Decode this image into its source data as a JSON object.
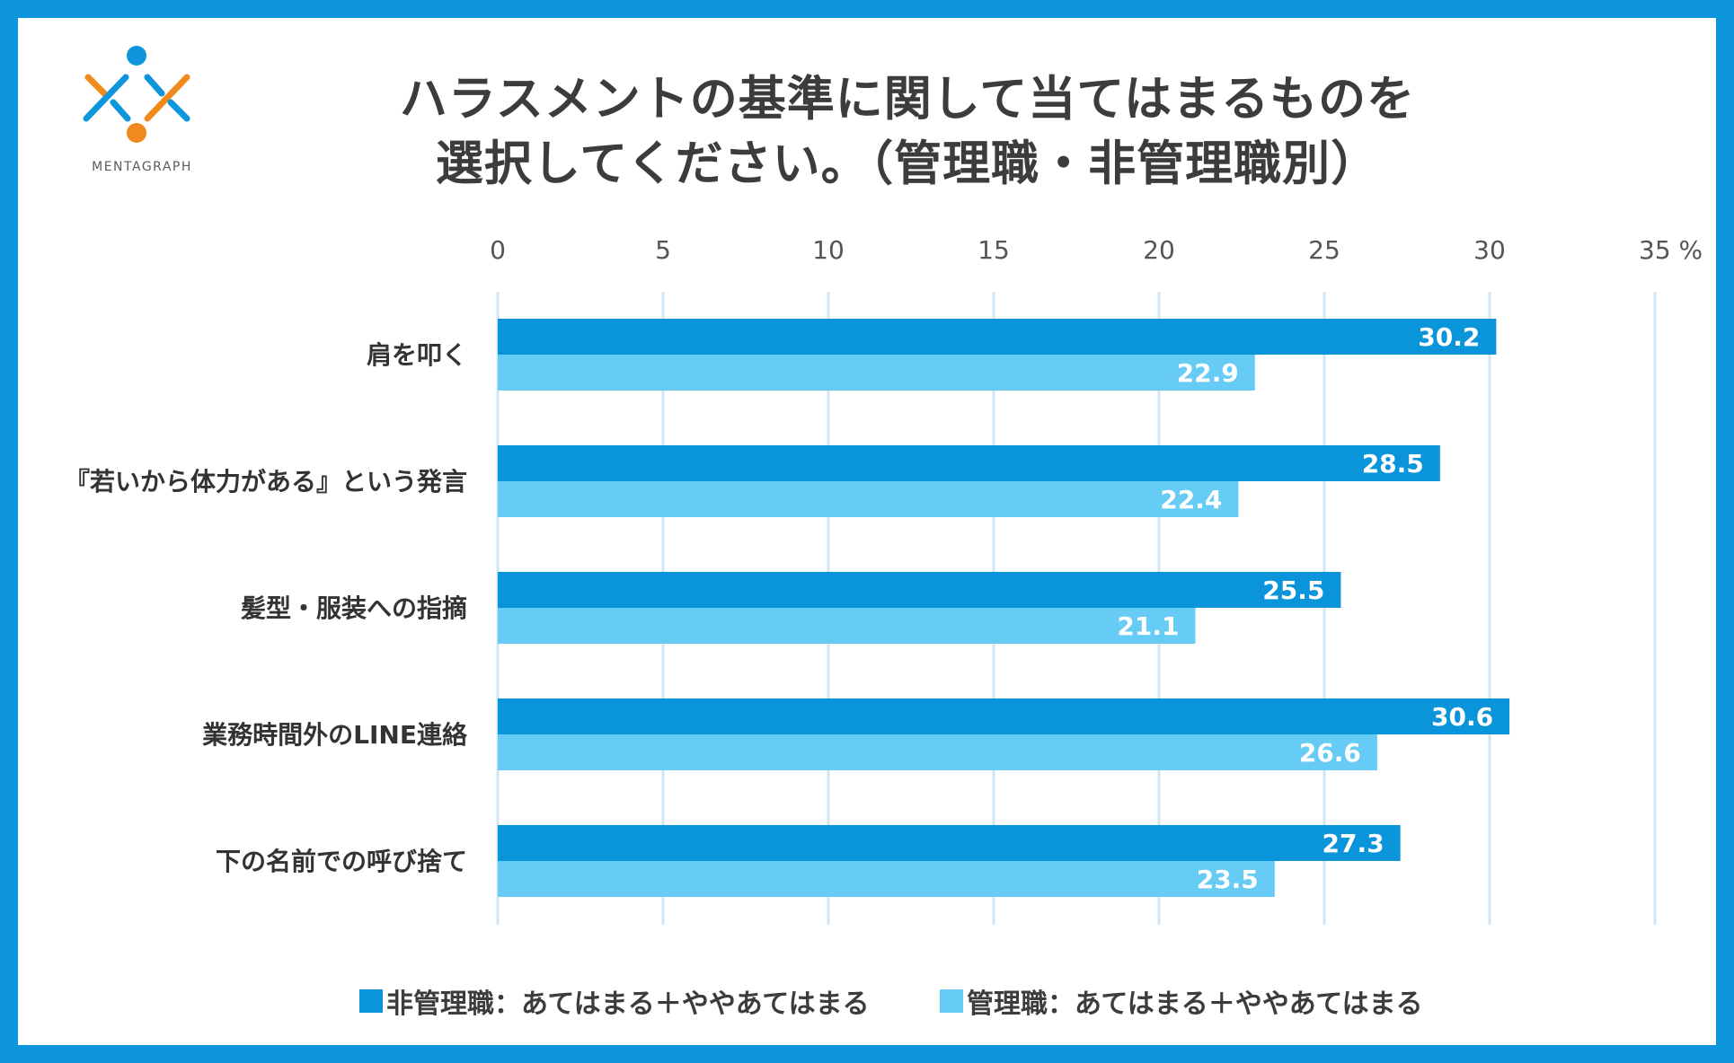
{
  "brand": {
    "name": "MENTAGRAPH"
  },
  "colors": {
    "frame": "#0d96dc",
    "series1": "#0a94da",
    "series2": "#66cbf5",
    "grid": "#cfe7f4"
  },
  "title": {
    "line1": "ハラスメントの基準に関して当てはまるものを",
    "line2": "選択してください。（管理職・非管理職別）"
  },
  "chart_data": {
    "type": "bar",
    "orientation": "horizontal",
    "categories": [
      "肩を叩く",
      "『若いから体力がある』という発言",
      "髪型・服装への指摘",
      "業務時間外のLINE連絡",
      "下の名前での呼び捨て"
    ],
    "series": [
      {
        "name": "非管理職：あてはまる＋ややあてはまる",
        "values": [
          30.2,
          28.5,
          25.5,
          30.6,
          27.3
        ]
      },
      {
        "name": "管理職：あてはまる＋ややあてはまる",
        "values": [
          22.9,
          22.4,
          21.1,
          26.6,
          23.5
        ]
      }
    ],
    "xlim": [
      0,
      35
    ],
    "xticks": [
      "0",
      "5",
      "10",
      "15",
      "20",
      "25",
      "30",
      "35 %"
    ],
    "unit": "%",
    "grid": true,
    "legend_position": "bottom"
  }
}
